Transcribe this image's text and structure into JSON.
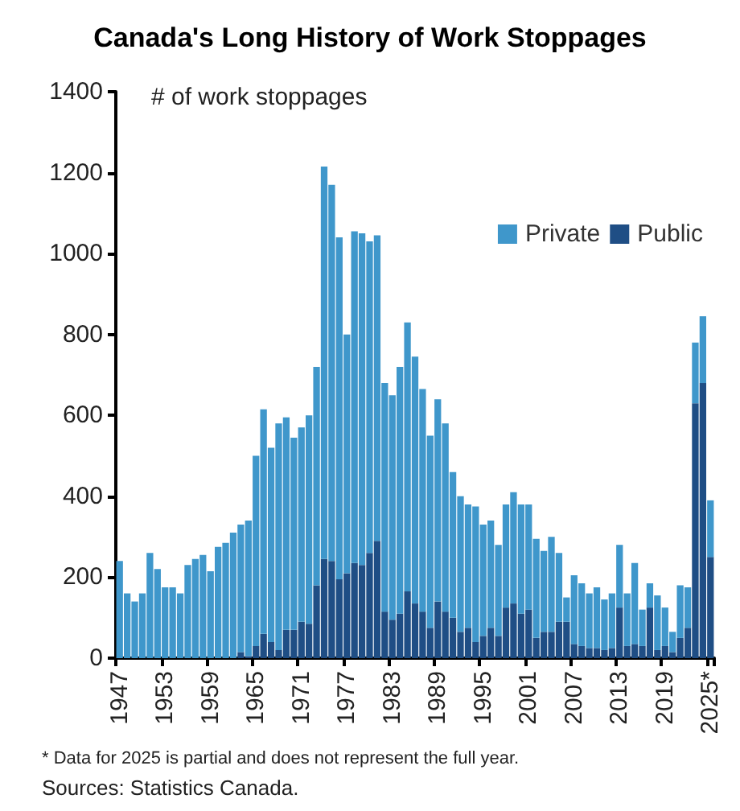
{
  "chart_data": {
    "type": "bar",
    "title": "Canada's Long History of Work Stoppages",
    "ylabel": "# of work stoppages",
    "categories": [
      "1947",
      null,
      null,
      null,
      null,
      null,
      "1953",
      null,
      null,
      null,
      null,
      null,
      "1959",
      null,
      null,
      null,
      null,
      null,
      "1965",
      null,
      null,
      null,
      null,
      null,
      "1971",
      null,
      null,
      null,
      null,
      null,
      "1977",
      null,
      null,
      null,
      null,
      null,
      "1983",
      null,
      null,
      null,
      null,
      null,
      "1989",
      null,
      null,
      null,
      null,
      null,
      "1995",
      null,
      null,
      null,
      null,
      null,
      "2001",
      null,
      null,
      null,
      null,
      null,
      "2007",
      null,
      null,
      null,
      null,
      null,
      "2013",
      null,
      null,
      null,
      null,
      null,
      "2019",
      null,
      null,
      null,
      null,
      null,
      "2025*"
    ],
    "stacked": true,
    "series": [
      {
        "name": "Public",
        "color": "#1f4e85",
        "values": [
          0,
          0,
          0,
          0,
          0,
          0,
          0,
          0,
          0,
          0,
          0,
          0,
          0,
          0,
          0,
          0,
          15,
          5,
          30,
          60,
          40,
          20,
          70,
          70,
          90,
          85,
          180,
          245,
          240,
          195,
          210,
          235,
          230,
          260,
          290,
          115,
          95,
          110,
          165,
          135,
          115,
          75,
          140,
          115,
          100,
          65,
          75,
          40,
          55,
          75,
          55,
          125,
          135,
          110,
          120,
          50,
          65,
          65,
          90,
          90,
          35,
          30,
          25,
          25,
          20,
          25,
          125,
          30,
          35,
          30,
          125,
          20,
          30,
          15,
          50,
          75,
          630,
          680,
          250
        ]
      },
      {
        "name": "Private",
        "color": "#3f97cb",
        "values": [
          240,
          160,
          140,
          160,
          260,
          220,
          175,
          175,
          160,
          230,
          245,
          255,
          215,
          275,
          285,
          310,
          315,
          335,
          470,
          555,
          480,
          560,
          525,
          475,
          480,
          515,
          540,
          970,
          930,
          845,
          590,
          820,
          820,
          770,
          755,
          565,
          555,
          610,
          665,
          610,
          550,
          475,
          500,
          465,
          360,
          335,
          305,
          335,
          275,
          265,
          225,
          255,
          275,
          270,
          260,
          245,
          200,
          235,
          170,
          60,
          170,
          155,
          135,
          150,
          125,
          135,
          155,
          130,
          200,
          90,
          60,
          135,
          95,
          50,
          130,
          100,
          150,
          165,
          140
        ]
      }
    ],
    "ylim": [
      0,
      1400
    ],
    "yticks": [
      0,
      200,
      400,
      600,
      800,
      1000,
      1200,
      1400
    ],
    "grid": false,
    "legend": "top right",
    "annotations": [
      "* Data for 2025 is partial and does not represent the full year.",
      "Sources: Statistics Canada."
    ]
  }
}
